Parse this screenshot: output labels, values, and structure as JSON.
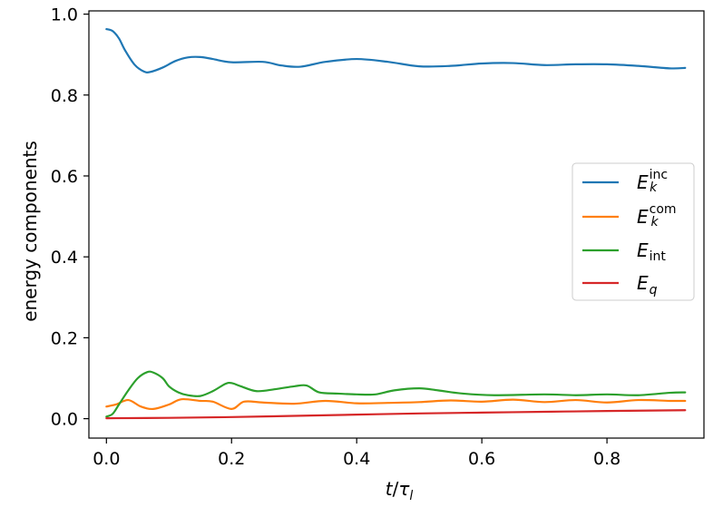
{
  "chart_data": {
    "type": "line",
    "xlabel": "t/τ_l",
    "ylabel": "energy components",
    "xlim": [
      -0.028,
      0.955
    ],
    "ylim": [
      -0.048,
      1.008
    ],
    "xticks": [
      "0.0",
      "0.2",
      "0.4",
      "0.6",
      "0.8"
    ],
    "xtick_values": [
      0.0,
      0.2,
      0.4,
      0.6,
      0.8
    ],
    "yticks": [
      "0.0",
      "0.2",
      "0.4",
      "0.6",
      "0.8",
      "1.0"
    ],
    "ytick_values": [
      0.0,
      0.2,
      0.4,
      0.6,
      0.8,
      1.0
    ],
    "legend_position": "center-right",
    "series": [
      {
        "name": "E_k^inc",
        "color": "#1f77b4",
        "x": [
          0.0,
          0.01,
          0.02,
          0.03,
          0.045,
          0.06,
          0.07,
          0.09,
          0.11,
          0.13,
          0.15,
          0.17,
          0.2,
          0.25,
          0.28,
          0.31,
          0.35,
          0.4,
          0.45,
          0.5,
          0.55,
          0.6,
          0.65,
          0.7,
          0.75,
          0.8,
          0.85,
          0.9,
          0.925
        ],
        "values": [
          0.963,
          0.958,
          0.94,
          0.91,
          0.875,
          0.858,
          0.857,
          0.868,
          0.884,
          0.893,
          0.894,
          0.889,
          0.881,
          0.882,
          0.873,
          0.87,
          0.882,
          0.889,
          0.882,
          0.871,
          0.872,
          0.878,
          0.879,
          0.874,
          0.876,
          0.876,
          0.872,
          0.866,
          0.867
        ]
      },
      {
        "name": "E_k^com",
        "color": "#ff7f0e",
        "x": [
          0.0,
          0.015,
          0.035,
          0.055,
          0.075,
          0.1,
          0.12,
          0.15,
          0.17,
          0.2,
          0.22,
          0.25,
          0.3,
          0.35,
          0.4,
          0.45,
          0.5,
          0.55,
          0.6,
          0.65,
          0.7,
          0.75,
          0.8,
          0.85,
          0.9,
          0.925
        ],
        "values": [
          0.03,
          0.035,
          0.046,
          0.03,
          0.024,
          0.035,
          0.048,
          0.044,
          0.042,
          0.024,
          0.042,
          0.04,
          0.037,
          0.044,
          0.038,
          0.039,
          0.041,
          0.045,
          0.042,
          0.047,
          0.041,
          0.046,
          0.04,
          0.046,
          0.044,
          0.044
        ]
      },
      {
        "name": "E_int",
        "color": "#2ca02c",
        "x": [
          0.0,
          0.01,
          0.02,
          0.035,
          0.05,
          0.065,
          0.075,
          0.09,
          0.1,
          0.115,
          0.13,
          0.15,
          0.17,
          0.19,
          0.2,
          0.215,
          0.24,
          0.27,
          0.3,
          0.32,
          0.34,
          0.37,
          0.4,
          0.43,
          0.46,
          0.5,
          0.53,
          0.57,
          0.62,
          0.7,
          0.75,
          0.8,
          0.85,
          0.9,
          0.925
        ],
        "values": [
          0.005,
          0.012,
          0.035,
          0.07,
          0.1,
          0.115,
          0.114,
          0.1,
          0.08,
          0.065,
          0.058,
          0.056,
          0.068,
          0.086,
          0.088,
          0.08,
          0.068,
          0.073,
          0.08,
          0.082,
          0.065,
          0.062,
          0.06,
          0.06,
          0.07,
          0.075,
          0.07,
          0.062,
          0.058,
          0.06,
          0.058,
          0.06,
          0.058,
          0.064,
          0.065
        ]
      },
      {
        "name": "E_q",
        "color": "#d62728",
        "x": [
          0.0,
          0.1,
          0.2,
          0.3,
          0.4,
          0.5,
          0.6,
          0.7,
          0.8,
          0.925
        ],
        "values": [
          0.001,
          0.002,
          0.004,
          0.007,
          0.01,
          0.013,
          0.015,
          0.017,
          0.019,
          0.021
        ]
      }
    ]
  }
}
